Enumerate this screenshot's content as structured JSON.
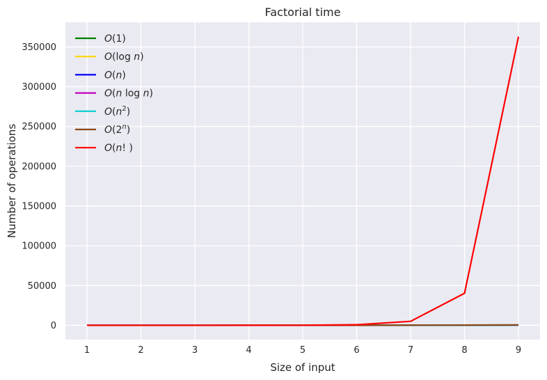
{
  "chart_data": {
    "type": "line",
    "title": "Factorial time",
    "xlabel": "Size of input",
    "ylabel": "Number of operations",
    "x": [
      1,
      2,
      3,
      4,
      5,
      6,
      7,
      8,
      9
    ],
    "xlim": [
      0.6,
      9.4
    ],
    "ylim": [
      -18000,
      381000
    ],
    "xticks": [
      1,
      2,
      3,
      4,
      5,
      6,
      7,
      8,
      9
    ],
    "yticks": [
      0,
      50000,
      100000,
      150000,
      200000,
      250000,
      300000,
      350000
    ],
    "grid": true,
    "legend_position": "top-left",
    "background_color": "#eaeaf2",
    "series": [
      {
        "name": "O(1)",
        "legend": {
          "pre": "O",
          "mid": "(1)",
          "sup": "",
          "post": ""
        },
        "color": "#008000",
        "values": [
          1,
          1,
          1,
          1,
          1,
          1,
          1,
          1,
          1
        ]
      },
      {
        "name": "O(log n)",
        "legend": {
          "pre": "O",
          "mid": "(log ",
          "var": "n",
          "sup": "",
          "post": ")"
        },
        "color": "#ffd700",
        "values": [
          0,
          0.69,
          1.1,
          1.39,
          1.61,
          1.79,
          1.95,
          2.08,
          2.2
        ]
      },
      {
        "name": "O(n)",
        "legend": {
          "pre": "O",
          "mid": "(",
          "var": "n",
          "sup": "",
          "post": ")"
        },
        "color": "#0000ff",
        "values": [
          1,
          2,
          3,
          4,
          5,
          6,
          7,
          8,
          9
        ]
      },
      {
        "name": "O(n log n)",
        "legend": {
          "pre": "O",
          "mid": "(",
          "var": "n",
          "mid2": " log ",
          "var2": "n",
          "sup": "",
          "post": ")"
        },
        "color": "#bf00bf",
        "values": [
          0,
          1.39,
          3.3,
          5.55,
          8.05,
          10.75,
          13.62,
          16.64,
          19.78
        ]
      },
      {
        "name": "O(n^2)",
        "legend": {
          "pre": "O",
          "mid": "(",
          "var": "n",
          "sup": "2",
          "post": ")"
        },
        "color": "#00ced1",
        "values": [
          1,
          4,
          9,
          16,
          25,
          36,
          49,
          64,
          81
        ]
      },
      {
        "name": "O(2^n)",
        "legend": {
          "pre": "O",
          "mid": "(2",
          "sup": "n",
          "post": ")"
        },
        "color": "#8b4513",
        "values": [
          2,
          4,
          8,
          16,
          32,
          64,
          128,
          256,
          512
        ]
      },
      {
        "name": "O(n!)",
        "legend": {
          "pre": "O",
          "mid": "(",
          "var": "n",
          "mid2": "! ",
          "sup": "",
          "post": ")"
        },
        "color": "#ff0000",
        "values": [
          1,
          2,
          6,
          24,
          120,
          720,
          5040,
          40320,
          362880
        ]
      }
    ]
  }
}
